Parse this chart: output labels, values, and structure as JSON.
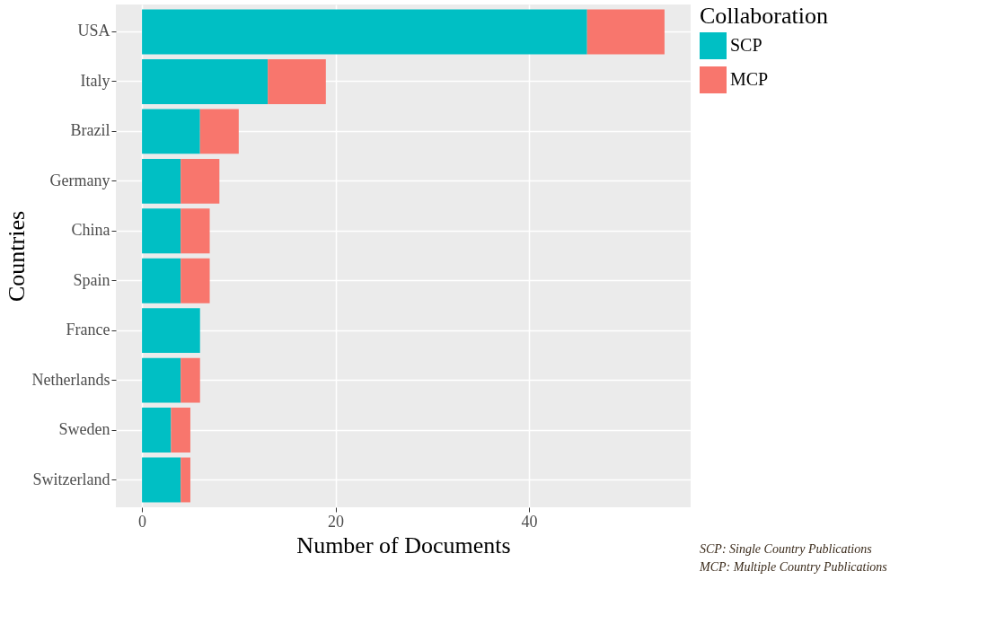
{
  "chart_data": {
    "type": "bar",
    "orientation": "horizontal",
    "stacked": true,
    "xlabel": "Number of Documents",
    "ylabel": "Countries",
    "legend_title": "Collaboration",
    "legend": "right",
    "grid": true,
    "categories": [
      "USA",
      "Italy",
      "Brazil",
      "Germany",
      "China",
      "Spain",
      "France",
      "Netherlands",
      "Sweden",
      "Switzerland"
    ],
    "series": [
      {
        "name": "SCP",
        "color": "#00bfc4",
        "values": [
          46,
          13,
          6,
          4,
          4,
          4,
          6,
          4,
          3,
          4
        ]
      },
      {
        "name": "MCP",
        "color": "#f8766d",
        "values": [
          8,
          6,
          4,
          4,
          3,
          3,
          0,
          2,
          2,
          1
        ]
      }
    ],
    "xlim": [
      -2.7,
      56.7
    ],
    "xticks": [
      0,
      20,
      40
    ],
    "annotations": [
      "SCP: Single Country Publications",
      "MCP: Multiple Country Publications"
    ]
  }
}
